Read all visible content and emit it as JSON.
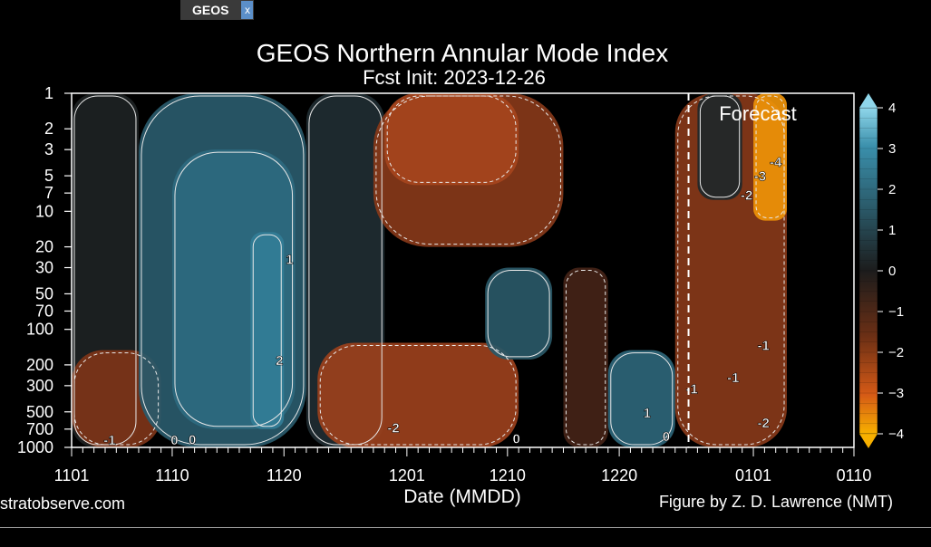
{
  "tab": {
    "label": "GEOS",
    "close_label": "x"
  },
  "footer": {
    "source": "stratobserve.com",
    "credit": "Figure by Z. D. Lawrence (NMT)"
  },
  "colors": {
    "positive": "#2f6f86",
    "negative": "#a9461e",
    "neutral": "#1c1c1c",
    "forecast_line": "#ffffff"
  },
  "chart_data": {
    "type": "heatmap",
    "title": "GEOS Northern Annular Mode Index",
    "subtitle": "Fcst Init: 2023-12-26",
    "xlabel": "Date (MMDD)",
    "ylabel": "",
    "forecast_label": "Forecast",
    "forecast_start": "1226",
    "x_ticks": [
      "1101",
      "1110",
      "1120",
      "1201",
      "1210",
      "1220",
      "0101",
      "0110"
    ],
    "x_tick_days": [
      0,
      9,
      19,
      30,
      39,
      49,
      61,
      70
    ],
    "x_range_days": [
      0,
      70
    ],
    "data_end_day": 64,
    "y_ticks": [
      1,
      2,
      3,
      5,
      7,
      10,
      20,
      30,
      50,
      70,
      100,
      200,
      300,
      500,
      700,
      1000
    ],
    "y_range": [
      1,
      1000
    ],
    "y_scale": "log",
    "colorbar": {
      "ticks": [
        4,
        3,
        2,
        1,
        0,
        -1,
        -2,
        -3,
        -4
      ],
      "labels": [
        "4",
        "3",
        "2",
        "1",
        "0",
        "−1",
        "−2",
        "−3",
        "−4"
      ],
      "range": [
        -4,
        4
      ]
    },
    "contour_labels": [
      {
        "text": "1",
        "day": 19.5,
        "hpa": 28
      },
      {
        "text": "2",
        "day": 18.6,
        "hpa": 200
      },
      {
        "text": "-2",
        "day": 28.8,
        "hpa": 750
      },
      {
        "text": "-1",
        "day": 3.4,
        "hpa": 950
      },
      {
        "text": "0",
        "day": 9.2,
        "hpa": 950
      },
      {
        "text": "0",
        "day": 10.8,
        "hpa": 940
      },
      {
        "text": "0",
        "day": 39.8,
        "hpa": 920
      },
      {
        "text": "1",
        "day": 51.5,
        "hpa": 560
      },
      {
        "text": "0",
        "day": 53.2,
        "hpa": 880
      },
      {
        "text": "-1",
        "day": 55.5,
        "hpa": 350
      },
      {
        "text": "-1",
        "day": 59.2,
        "hpa": 280
      },
      {
        "text": "-1",
        "day": 61.9,
        "hpa": 150
      },
      {
        "text": "-2",
        "day": 61.9,
        "hpa": 680
      },
      {
        "text": "-2",
        "day": 60.4,
        "hpa": 8
      },
      {
        "text": "-3",
        "day": 61.6,
        "hpa": 5.5
      },
      {
        "text": "-4",
        "day": 63.0,
        "hpa": 4.2
      }
    ],
    "regions": [
      {
        "day_start": 0,
        "day_end": 6,
        "hpa_top": 1,
        "hpa_bottom": 1000,
        "value": 0.1
      },
      {
        "day_start": 0,
        "day_end": 8,
        "hpa_top": 150,
        "hpa_bottom": 1000,
        "value": -1.6
      },
      {
        "day_start": 6,
        "day_end": 21,
        "hpa_top": 1,
        "hpa_bottom": 1000,
        "value": 1.2
      },
      {
        "day_start": 9,
        "day_end": 20,
        "hpa_top": 3,
        "hpa_bottom": 700,
        "value": 1.8
      },
      {
        "day_start": 16,
        "day_end": 19,
        "hpa_top": 15,
        "hpa_bottom": 700,
        "value": 2.5
      },
      {
        "day_start": 21,
        "day_end": 28,
        "hpa_top": 1,
        "hpa_bottom": 1000,
        "value": 0.3
      },
      {
        "day_start": 27,
        "day_end": 44,
        "hpa_top": 1,
        "hpa_bottom": 20,
        "value": -1.8
      },
      {
        "day_start": 28,
        "day_end": 40,
        "hpa_top": 1,
        "hpa_bottom": 6,
        "value": -2.4
      },
      {
        "day_start": 22,
        "day_end": 40,
        "hpa_top": 130,
        "hpa_bottom": 1000,
        "value": -2.2
      },
      {
        "day_start": 37,
        "day_end": 43,
        "hpa_top": 30,
        "hpa_bottom": 180,
        "value": 1.1
      },
      {
        "day_start": 44,
        "day_end": 48,
        "hpa_top": 30,
        "hpa_bottom": 1000,
        "value": -0.6
      },
      {
        "day_start": 48,
        "day_end": 54,
        "hpa_top": 150,
        "hpa_bottom": 1000,
        "value": 1.6
      },
      {
        "day_start": 54,
        "day_end": 64,
        "hpa_top": 1,
        "hpa_bottom": 1000,
        "value": -1.8
      },
      {
        "day_start": 56,
        "day_end": 60,
        "hpa_top": 1,
        "hpa_bottom": 8,
        "value": 0.2
      },
      {
        "day_start": 61,
        "day_end": 64,
        "hpa_top": 1,
        "hpa_bottom": 12,
        "value": -3.8
      }
    ]
  }
}
